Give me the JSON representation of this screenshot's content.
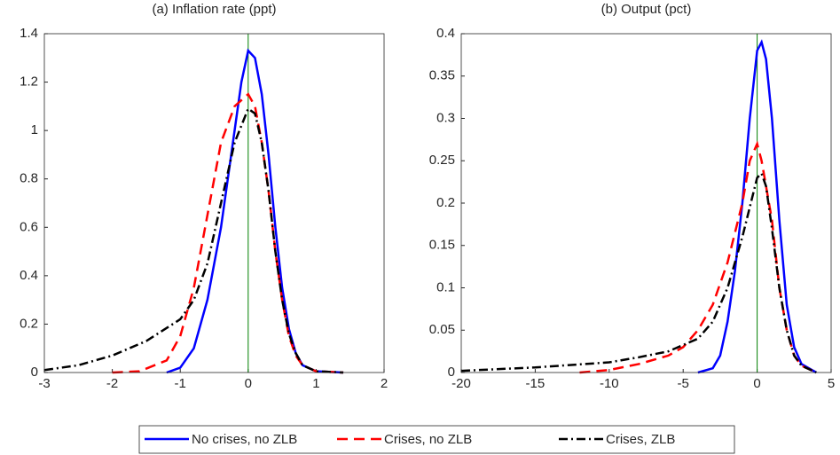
{
  "chart_data": [
    {
      "type": "line",
      "title": "(a) Inflation rate (ppt)",
      "xlim": [
        -3,
        2
      ],
      "xticks": [
        -3,
        -2,
        -1,
        0,
        1,
        2
      ],
      "ylim": [
        0,
        1.4
      ],
      "yticks": [
        0,
        0.2,
        0.4,
        0.6,
        0.8,
        1,
        1.2,
        1.4
      ],
      "vline": 0,
      "vline_color": "#008000",
      "series": [
        {
          "name": "No crises, no ZLB",
          "color": "#0000ff",
          "dash": "solid",
          "x": [
            -1.2,
            -1.0,
            -0.8,
            -0.6,
            -0.4,
            -0.2,
            -0.1,
            0,
            0.1,
            0.2,
            0.3,
            0.4,
            0.5,
            0.6,
            0.7,
            0.8,
            1.0,
            1.4
          ],
          "values": [
            0,
            0.02,
            0.1,
            0.3,
            0.6,
            1.0,
            1.2,
            1.33,
            1.3,
            1.15,
            0.9,
            0.6,
            0.35,
            0.18,
            0.08,
            0.03,
            0.005,
            0
          ]
        },
        {
          "name": "Crises, no ZLB",
          "color": "#ff0000",
          "dash": "dashed",
          "x": [
            -2,
            -1.6,
            -1.2,
            -1.0,
            -0.8,
            -0.6,
            -0.4,
            -0.2,
            0,
            0.1,
            0.2,
            0.3,
            0.4,
            0.5,
            0.6,
            0.7,
            0.8,
            1.0,
            1.4
          ],
          "values": [
            0,
            0.005,
            0.05,
            0.15,
            0.35,
            0.65,
            0.95,
            1.1,
            1.15,
            1.1,
            0.95,
            0.75,
            0.5,
            0.3,
            0.15,
            0.07,
            0.03,
            0.005,
            0
          ]
        },
        {
          "name": "Crises, ZLB",
          "color": "#000000",
          "dash": "dashdot",
          "x": [
            -3,
            -2.5,
            -2,
            -1.5,
            -1.0,
            -0.8,
            -0.6,
            -0.4,
            -0.2,
            0,
            0.1,
            0.2,
            0.3,
            0.4,
            0.5,
            0.6,
            0.7,
            0.8,
            1.0,
            1.4
          ],
          "values": [
            0.01,
            0.03,
            0.07,
            0.13,
            0.22,
            0.3,
            0.45,
            0.7,
            0.95,
            1.09,
            1.07,
            0.95,
            0.75,
            0.5,
            0.3,
            0.16,
            0.08,
            0.03,
            0.005,
            0
          ]
        }
      ]
    },
    {
      "type": "line",
      "title": "(b) Output (pct)",
      "xlim": [
        -20,
        5
      ],
      "xticks": [
        -20,
        -15,
        -10,
        -5,
        0,
        5
      ],
      "ylim": [
        0,
        0.4
      ],
      "yticks": [
        0,
        0.05,
        0.1,
        0.15,
        0.2,
        0.25,
        0.3,
        0.35,
        0.4
      ],
      "vline": 0,
      "vline_color": "#008000",
      "series": [
        {
          "color": "#0000ff",
          "dash": "solid",
          "x": [
            -4,
            -3,
            -2.5,
            -2,
            -1.5,
            -1,
            -0.5,
            0,
            0.3,
            0.6,
            1,
            1.5,
            2,
            2.5,
            3,
            4
          ],
          "values": [
            0,
            0.005,
            0.02,
            0.06,
            0.12,
            0.2,
            0.3,
            0.38,
            0.39,
            0.37,
            0.3,
            0.18,
            0.08,
            0.03,
            0.01,
            0
          ]
        },
        {
          "color": "#ff0000",
          "dash": "dashed",
          "x": [
            -12,
            -10,
            -8,
            -6,
            -5,
            -4,
            -3,
            -2,
            -1,
            -0.5,
            0,
            0.3,
            0.6,
            1,
            1.5,
            2,
            2.5,
            3,
            4
          ],
          "values": [
            0,
            0.003,
            0.01,
            0.02,
            0.03,
            0.05,
            0.08,
            0.13,
            0.2,
            0.25,
            0.27,
            0.25,
            0.22,
            0.18,
            0.1,
            0.05,
            0.02,
            0.008,
            0
          ]
        },
        {
          "color": "#000000",
          "dash": "dashdot",
          "x": [
            -20,
            -15,
            -10,
            -8,
            -6,
            -4,
            -3,
            -2,
            -1,
            0,
            0.3,
            0.6,
            1,
            1.5,
            2,
            2.5,
            3,
            4
          ],
          "values": [
            0.002,
            0.006,
            0.012,
            0.018,
            0.025,
            0.04,
            0.06,
            0.1,
            0.16,
            0.23,
            0.235,
            0.22,
            0.17,
            0.1,
            0.05,
            0.02,
            0.008,
            0
          ]
        }
      ]
    }
  ]
}
